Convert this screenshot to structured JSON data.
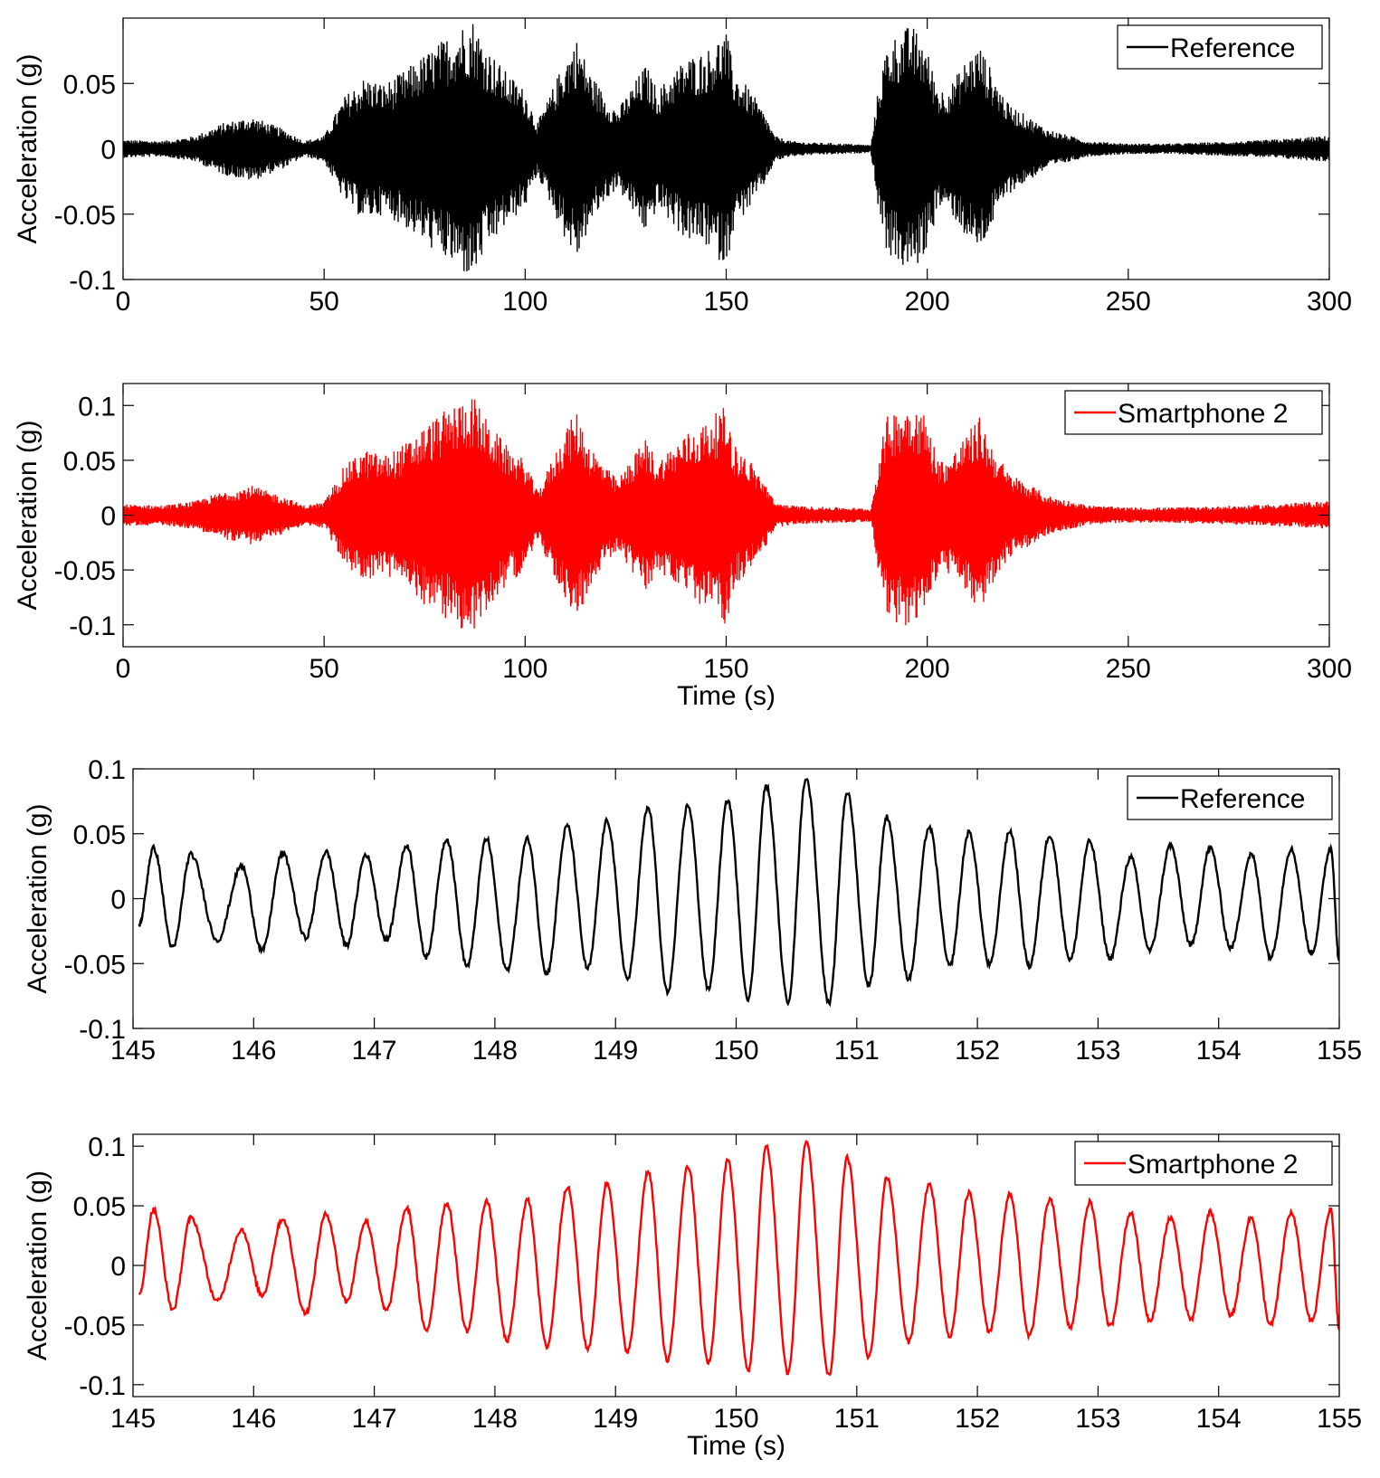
{
  "chart_data": [
    {
      "type": "line",
      "xlabel": "",
      "ylabel": "Acceleration (g)",
      "xlim": [
        0,
        300
      ],
      "ylim": [
        -0.1,
        0.1
      ],
      "xticks": [
        0,
        50,
        100,
        150,
        200,
        250,
        300
      ],
      "xtick_labels": [
        "0",
        "50",
        "100",
        "150",
        "200",
        "250",
        "300"
      ],
      "yticks": [
        -0.1,
        -0.05,
        0,
        0.05
      ],
      "ytick_labels": [
        "-0.1",
        "-0.05",
        "0",
        "0.05"
      ],
      "grid": false,
      "legend_position": "top-right",
      "series": [
        {
          "name": "Reference",
          "color": "#000000",
          "envelope_time": [
            0,
            10,
            18,
            25,
            32,
            40,
            45,
            50,
            55,
            60,
            65,
            70,
            76,
            80,
            84,
            87,
            90,
            95,
            100,
            103,
            106,
            110,
            113,
            116,
            120,
            123,
            127,
            130,
            133,
            137,
            140,
            145,
            148,
            150,
            152,
            156,
            160,
            162,
            166,
            170,
            180,
            186,
            188,
            190,
            193,
            196,
            199,
            203,
            206,
            210,
            213,
            216,
            220,
            230,
            240,
            250,
            260,
            270,
            280,
            290,
            300
          ],
          "envelope_amplitude": [
            0.007,
            0.006,
            0.01,
            0.02,
            0.025,
            0.015,
            0.006,
            0.01,
            0.04,
            0.055,
            0.05,
            0.06,
            0.075,
            0.085,
            0.095,
            0.1,
            0.08,
            0.06,
            0.045,
            0.02,
            0.04,
            0.07,
            0.085,
            0.06,
            0.04,
            0.03,
            0.05,
            0.065,
            0.045,
            0.06,
            0.07,
            0.075,
            0.085,
            0.09,
            0.06,
            0.045,
            0.025,
            0.01,
            0.006,
            0.005,
            0.004,
            0.003,
            0.05,
            0.08,
            0.09,
            0.095,
            0.085,
            0.045,
            0.05,
            0.07,
            0.08,
            0.06,
            0.035,
            0.015,
            0.006,
            0.004,
            0.004,
            0.005,
            0.006,
            0.008,
            0.01
          ]
        }
      ]
    },
    {
      "type": "line",
      "xlabel": "Time (s)",
      "ylabel": "Acceleration (g)",
      "xlim": [
        0,
        300
      ],
      "ylim": [
        -0.12,
        0.12
      ],
      "xticks": [
        0,
        50,
        100,
        150,
        200,
        250,
        300
      ],
      "xtick_labels": [
        "0",
        "50",
        "100",
        "150",
        "200",
        "250",
        "300"
      ],
      "yticks": [
        -0.1,
        -0.05,
        0,
        0.05,
        0.1
      ],
      "ytick_labels": [
        "-0.1",
        "-0.05",
        "0",
        "0.05",
        "0.1"
      ],
      "grid": false,
      "legend_position": "top-right",
      "series": [
        {
          "name": "Smartphone 2",
          "color": "#ff0000",
          "envelope_time": [
            0,
            10,
            18,
            25,
            32,
            40,
            45,
            50,
            55,
            60,
            65,
            70,
            76,
            80,
            84,
            87,
            90,
            95,
            100,
            103,
            106,
            110,
            113,
            116,
            120,
            123,
            127,
            130,
            133,
            137,
            140,
            145,
            148,
            150,
            152,
            156,
            160,
            162,
            166,
            170,
            180,
            186,
            188,
            190,
            193,
            196,
            199,
            203,
            206,
            210,
            213,
            216,
            220,
            230,
            240,
            250,
            260,
            270,
            280,
            290,
            300
          ],
          "envelope_amplitude": [
            0.01,
            0.009,
            0.013,
            0.022,
            0.027,
            0.017,
            0.009,
            0.012,
            0.045,
            0.06,
            0.055,
            0.065,
            0.085,
            0.095,
            0.105,
            0.11,
            0.09,
            0.065,
            0.05,
            0.022,
            0.045,
            0.08,
            0.095,
            0.065,
            0.045,
            0.032,
            0.055,
            0.07,
            0.05,
            0.065,
            0.075,
            0.085,
            0.095,
            0.1,
            0.065,
            0.05,
            0.028,
            0.012,
            0.009,
            0.008,
            0.007,
            0.006,
            0.055,
            0.09,
            0.1,
            0.105,
            0.095,
            0.05,
            0.055,
            0.075,
            0.09,
            0.065,
            0.04,
            0.018,
            0.009,
            0.007,
            0.007,
            0.008,
            0.009,
            0.011,
            0.013
          ]
        }
      ]
    },
    {
      "type": "line",
      "xlabel": "",
      "ylabel": "Acceleration (g)",
      "xlim": [
        145,
        155
      ],
      "ylim": [
        -0.1,
        0.1
      ],
      "xticks": [
        145,
        146,
        147,
        148,
        149,
        150,
        151,
        152,
        153,
        154,
        155
      ],
      "xtick_labels": [
        "145",
        "146",
        "147",
        "148",
        "149",
        "150",
        "151",
        "152",
        "153",
        "154",
        "155"
      ],
      "yticks": [
        -0.1,
        -0.05,
        0,
        0.05,
        0.1
      ],
      "ytick_labels": [
        "-0.1",
        "-0.05",
        "0",
        "0.05",
        "0.1"
      ],
      "grid": false,
      "legend_position": "top-right",
      "series": [
        {
          "name": "Reference",
          "color": "#000000",
          "peak_time": [
            145.17,
            145.48,
            145.9,
            146.24,
            146.6,
            146.93,
            147.27,
            147.6,
            147.93,
            148.27,
            148.6,
            148.93,
            149.27,
            149.6,
            149.93,
            150.25,
            150.58,
            150.92,
            151.25,
            151.6,
            151.93,
            152.27,
            152.6,
            152.93,
            153.27,
            153.6,
            153.93,
            154.27,
            154.6,
            154.93
          ],
          "peak_value": [
            0.039,
            0.034,
            0.025,
            0.035,
            0.036,
            0.034,
            0.041,
            0.046,
            0.046,
            0.046,
            0.056,
            0.06,
            0.07,
            0.072,
            0.076,
            0.087,
            0.093,
            0.082,
            0.063,
            0.055,
            0.051,
            0.052,
            0.049,
            0.044,
            0.032,
            0.041,
            0.039,
            0.034,
            0.038,
            0.039
          ],
          "trough_time": [
            145.05,
            145.33,
            145.7,
            146.07,
            146.43,
            146.77,
            147.1,
            147.43,
            147.77,
            148.1,
            148.43,
            148.77,
            149.1,
            149.43,
            149.77,
            150.1,
            150.43,
            150.77,
            151.1,
            151.43,
            151.77,
            152.1,
            152.43,
            152.77,
            153.1,
            153.43,
            153.77,
            154.1,
            154.43,
            154.77,
            155.0
          ],
          "trough_value": [
            -0.02,
            -0.038,
            -0.032,
            -0.04,
            -0.03,
            -0.036,
            -0.032,
            -0.045,
            -0.052,
            -0.055,
            -0.058,
            -0.054,
            -0.062,
            -0.072,
            -0.07,
            -0.077,
            -0.079,
            -0.081,
            -0.067,
            -0.062,
            -0.052,
            -0.051,
            -0.052,
            -0.047,
            -0.046,
            -0.04,
            -0.036,
            -0.038,
            -0.045,
            -0.042,
            -0.048
          ]
        }
      ]
    },
    {
      "type": "line",
      "xlabel": "Time (s)",
      "ylabel": "Acceleration (g)",
      "xlim": [
        145,
        155
      ],
      "ylim": [
        -0.11,
        0.11
      ],
      "xticks": [
        145,
        146,
        147,
        148,
        149,
        150,
        151,
        152,
        153,
        154,
        155
      ],
      "xtick_labels": [
        "145",
        "146",
        "147",
        "148",
        "149",
        "150",
        "151",
        "152",
        "153",
        "154",
        "155"
      ],
      "yticks": [
        -0.1,
        -0.05,
        0,
        0.05,
        0.1
      ],
      "ytick_labels": [
        "-0.1",
        "-0.05",
        "0",
        "0.05",
        "0.1"
      ],
      "grid": false,
      "legend_position": "top-right",
      "series": [
        {
          "name": "Smartphone 2",
          "color": "#ff0000",
          "peak_time": [
            145.17,
            145.48,
            145.9,
            146.24,
            146.6,
            146.93,
            147.27,
            147.6,
            147.93,
            148.27,
            148.6,
            148.93,
            149.27,
            149.6,
            149.93,
            150.25,
            150.58,
            150.92,
            151.25,
            151.6,
            151.93,
            152.27,
            152.6,
            152.93,
            153.27,
            153.6,
            153.93,
            154.27,
            154.6,
            154.93
          ],
          "peak_value": [
            0.047,
            0.04,
            0.03,
            0.039,
            0.043,
            0.037,
            0.048,
            0.052,
            0.054,
            0.055,
            0.066,
            0.069,
            0.079,
            0.083,
            0.088,
            0.1,
            0.103,
            0.09,
            0.074,
            0.068,
            0.061,
            0.06,
            0.055,
            0.053,
            0.044,
            0.04,
            0.045,
            0.04,
            0.044,
            0.047
          ],
          "trough_time": [
            145.05,
            145.33,
            145.7,
            146.07,
            146.43,
            146.77,
            147.1,
            147.43,
            147.77,
            148.1,
            148.43,
            148.77,
            149.1,
            149.43,
            149.77,
            150.1,
            150.43,
            150.77,
            151.1,
            151.43,
            151.77,
            152.1,
            152.43,
            152.77,
            153.1,
            153.43,
            153.77,
            154.1,
            154.43,
            154.77,
            155.0
          ],
          "trough_value": [
            -0.025,
            -0.037,
            -0.03,
            -0.025,
            -0.04,
            -0.03,
            -0.038,
            -0.055,
            -0.055,
            -0.063,
            -0.068,
            -0.07,
            -0.072,
            -0.08,
            -0.082,
            -0.088,
            -0.09,
            -0.093,
            -0.077,
            -0.064,
            -0.06,
            -0.056,
            -0.059,
            -0.052,
            -0.051,
            -0.046,
            -0.045,
            -0.042,
            -0.05,
            -0.047,
            -0.053
          ]
        }
      ]
    }
  ]
}
